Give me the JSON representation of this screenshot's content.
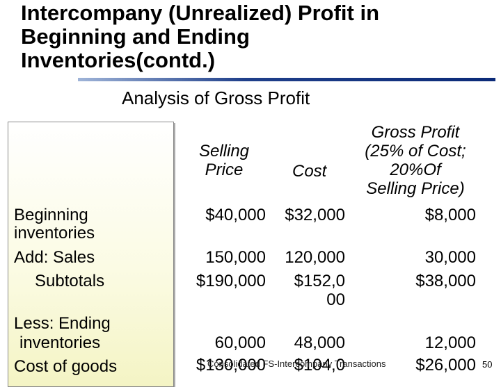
{
  "title": {
    "line1": "Intercompany (Unrealized) Profit in",
    "line2": "Beginning and Ending",
    "line3": "Inventories(contd.)"
  },
  "subtitle": "Analysis of Gross Profit",
  "columns": {
    "selling_price": [
      "Selling",
      "Price"
    ],
    "cost": "Cost",
    "gross_profit": [
      "Gross Profit",
      "(25% of Cost;",
      "20%Of",
      "Selling Price)"
    ]
  },
  "row_labels": {
    "beginning": [
      "Beginning",
      "inventories"
    ],
    "add_sales": "Add: Sales",
    "subtotals": "Subtotals",
    "less_ending": [
      "Less: Ending",
      "inventories"
    ],
    "cost_of_goods": "Cost of goods"
  },
  "rows": {
    "beginning": {
      "price": "$40,000",
      "cost": "$32,000",
      "profit": "$8,000"
    },
    "sales": {
      "price": "150,000",
      "cost": "120,000",
      "profit": "30,000"
    },
    "subtotals": {
      "price": "$190,000",
      "cost_a": "$152,0",
      "cost_b": "00",
      "profit": "$38,000"
    },
    "ending": {
      "price": "60,000",
      "cost": "48,000",
      "profit": "12,000"
    },
    "cogs": {
      "price": "$130,000",
      "cost": "$104,0",
      "profit": "$26,000"
    }
  },
  "footer": "Consolidated FS-Intercompany Transactions",
  "page_number": "50"
}
